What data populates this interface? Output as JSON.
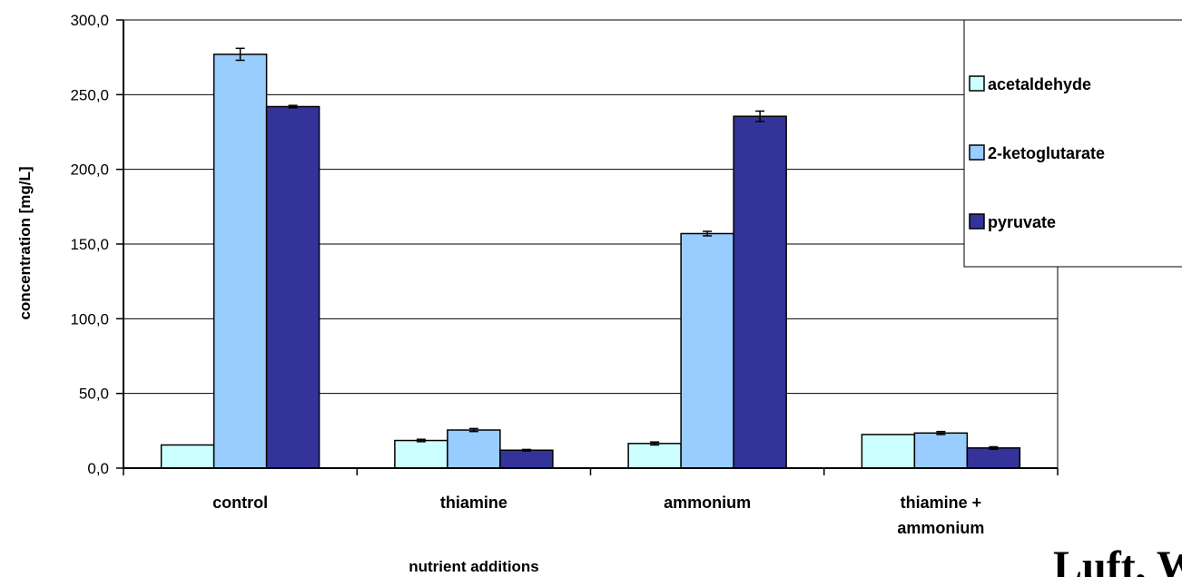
{
  "chart_data": {
    "type": "bar",
    "categories": [
      "control",
      "thiamine",
      "ammonium",
      "thiamine + ammonium"
    ],
    "category_lines": [
      [
        "control"
      ],
      [
        "thiamine"
      ],
      [
        "ammonium"
      ],
      [
        "thiamine +",
        "ammonium"
      ]
    ],
    "series": [
      {
        "name": "acetaldehyde",
        "color": "#ccffff",
        "values": [
          15.5,
          18.5,
          16.5,
          22.5
        ],
        "errors": [
          0,
          0.8,
          1.0,
          0
        ]
      },
      {
        "name": "2-ketoglutarate",
        "color": "#99ccff",
        "values": [
          277.0,
          25.5,
          157.0,
          23.5
        ],
        "errors": [
          4.0,
          1.0,
          1.5,
          1.0
        ]
      },
      {
        "name": "pyruvate",
        "color": "#333399",
        "values": [
          242.0,
          12.0,
          235.5,
          13.5
        ],
        "errors": [
          0.8,
          0.5,
          3.5,
          0.8
        ]
      }
    ],
    "ylim": [
      0,
      300
    ],
    "yticks": [
      "0,0",
      "50,0",
      "100,0",
      "150,0",
      "200,0",
      "250,0",
      "300,0"
    ],
    "ylabel": "concentration [mg/L]",
    "xlabel": "nutrient additions",
    "grid": true,
    "legend_position": "top-right",
    "corner_text": "Luft, Wi..."
  }
}
